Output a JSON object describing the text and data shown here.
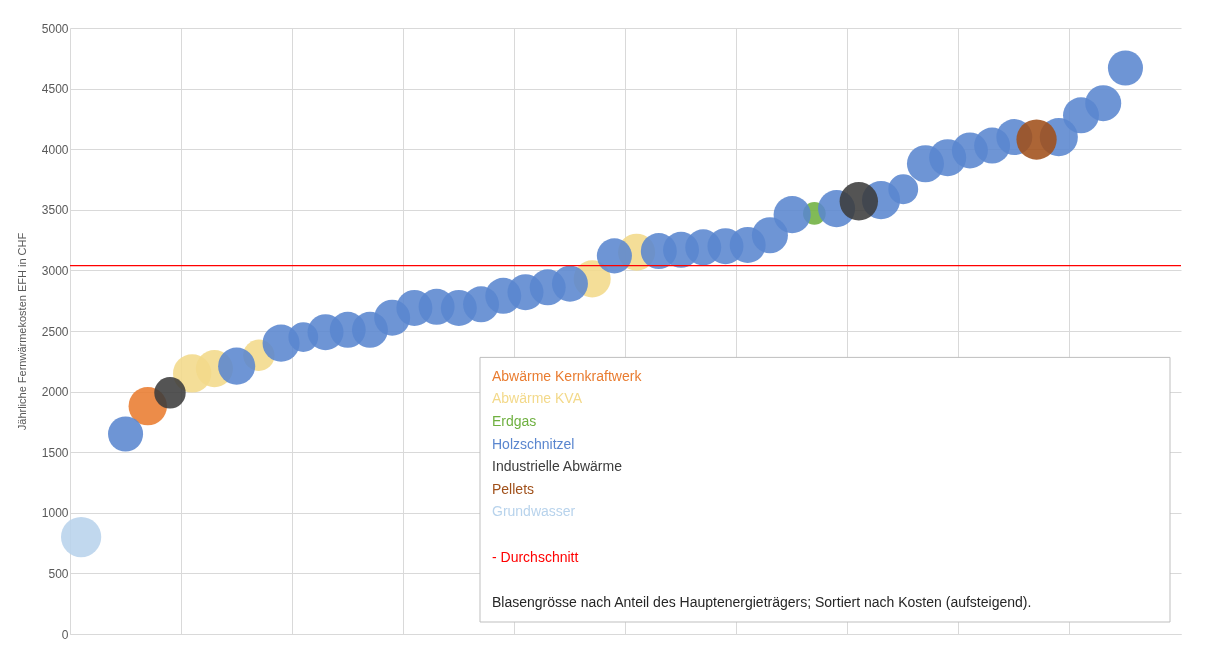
{
  "chart_data": {
    "type": "bubble",
    "ylabel": "Jährliche Fernwärmekosten EFH in CHF",
    "categories": [
      null,
      null,
      null,
      null,
      null,
      null,
      null,
      null,
      null,
      null,
      null,
      null,
      null,
      null,
      null,
      null,
      null,
      null,
      null,
      null,
      null,
      null,
      null,
      null,
      null,
      null,
      null,
      null,
      null,
      null,
      null,
      null,
      null,
      null,
      null,
      null,
      null,
      null,
      null,
      null,
      null,
      null,
      null,
      null,
      null,
      null,
      null,
      null,
      null,
      null
    ],
    "ylim": [
      0,
      5000
    ],
    "yticks": [
      0,
      500,
      1000,
      1500,
      2000,
      2500,
      3000,
      3500,
      4000,
      4500,
      5000
    ],
    "tick_labels": "y",
    "grid": true,
    "series": [
      {
        "name": "Abwärme Kernkraftwerk",
        "color": "#e97c30",
        "values": [
          null,
          null,
          null,
          1880,
          null,
          null,
          null,
          null,
          null,
          null,
          null,
          null,
          null,
          null,
          null,
          null,
          null,
          null,
          null,
          null,
          null,
          null,
          null,
          null,
          null,
          null,
          null,
          null,
          null,
          null,
          null,
          null,
          null,
          null,
          null,
          null,
          null,
          null,
          null,
          null,
          null,
          null,
          null,
          null,
          null,
          null,
          null,
          null,
          null,
          null
        ],
        "sizes": [
          null,
          null,
          null,
          0.91,
          null,
          null,
          null,
          null,
          null,
          null,
          null,
          null,
          null,
          null,
          null,
          null,
          null,
          null,
          null,
          null,
          null,
          null,
          null,
          null,
          null,
          null,
          null,
          null,
          null,
          null,
          null,
          null,
          null,
          null,
          null,
          null,
          null,
          null,
          null,
          null,
          null,
          null,
          null,
          null,
          null,
          null,
          null,
          null,
          null,
          null
        ]
      },
      {
        "name": "Abwärme KVA",
        "color": "#f3d98a",
        "values": [
          null,
          null,
          null,
          null,
          null,
          2150,
          2190,
          null,
          2300,
          null,
          null,
          null,
          null,
          null,
          null,
          null,
          null,
          null,
          null,
          null,
          null,
          null,
          null,
          2930,
          null,
          3150,
          null,
          null,
          null,
          null,
          null,
          null,
          null,
          null,
          null,
          null,
          null,
          null,
          null,
          null,
          null,
          null,
          null,
          null,
          null,
          null,
          null,
          null,
          null,
          null
        ],
        "sizes": [
          null,
          null,
          null,
          null,
          null,
          0.91,
          0.85,
          null,
          0.61,
          null,
          null,
          null,
          null,
          null,
          null,
          null,
          null,
          null,
          null,
          null,
          null,
          null,
          null,
          0.85,
          null,
          0.85,
          null,
          null,
          null,
          null,
          null,
          null,
          null,
          null,
          null,
          null,
          null,
          null,
          null,
          null,
          null,
          null,
          null,
          null,
          null,
          null,
          null,
          null,
          null,
          null
        ]
      },
      {
        "name": "Erdgas",
        "color": "#6fb040",
        "values": [
          null,
          null,
          null,
          null,
          null,
          null,
          null,
          null,
          null,
          null,
          null,
          null,
          null,
          null,
          null,
          null,
          null,
          null,
          null,
          null,
          null,
          null,
          null,
          null,
          null,
          null,
          null,
          null,
          null,
          null,
          null,
          null,
          null,
          3470,
          null,
          null,
          null,
          null,
          null,
          null,
          null,
          null,
          null,
          null,
          null,
          null,
          null,
          null,
          null,
          null
        ],
        "sizes": [
          null,
          null,
          null,
          null,
          null,
          null,
          null,
          null,
          null,
          null,
          null,
          null,
          null,
          null,
          null,
          null,
          null,
          null,
          null,
          null,
          null,
          null,
          null,
          null,
          null,
          null,
          null,
          null,
          null,
          null,
          null,
          null,
          null,
          0.32,
          null,
          null,
          null,
          null,
          null,
          null,
          null,
          null,
          null,
          null,
          null,
          null,
          null,
          null,
          null,
          null
        ]
      },
      {
        "name": "Holzschnitzel",
        "color": "#5a86cf",
        "values": [
          null,
          null,
          1650,
          null,
          null,
          null,
          null,
          2210,
          null,
          2400,
          2450,
          2490,
          2510,
          2510,
          2610,
          2690,
          2700,
          2690,
          2720,
          2790,
          2820,
          2860,
          2890,
          null,
          3120,
          null,
          3160,
          3170,
          3190,
          3200,
          3210,
          3290,
          3460,
          null,
          3510,
          null,
          3580,
          3670,
          3880,
          3930,
          3990,
          4030,
          4100,
          null,
          4100,
          4280,
          4380,
          4670,
          null,
          null
        ],
        "sizes": [
          null,
          null,
          0.76,
          null,
          null,
          null,
          null,
          0.85,
          null,
          0.85,
          0.55,
          0.8,
          0.8,
          0.8,
          0.8,
          0.8,
          0.8,
          0.8,
          0.8,
          0.8,
          0.8,
          0.8,
          0.8,
          null,
          0.76,
          null,
          0.8,
          0.8,
          0.8,
          0.8,
          0.8,
          0.8,
          0.85,
          null,
          0.85,
          null,
          0.9,
          0.55,
          0.85,
          0.85,
          0.8,
          0.8,
          0.8,
          null,
          0.9,
          0.8,
          0.8,
          0.76,
          null,
          null
        ]
      },
      {
        "name": "Industrielle Abwärme",
        "color": "#3c3c3c",
        "values": [
          null,
          null,
          null,
          null,
          1990,
          null,
          null,
          null,
          null,
          null,
          null,
          null,
          null,
          null,
          null,
          null,
          null,
          null,
          null,
          null,
          null,
          null,
          null,
          null,
          null,
          null,
          null,
          null,
          null,
          null,
          null,
          null,
          null,
          null,
          null,
          3570,
          null,
          null,
          null,
          null,
          null,
          null,
          null,
          null,
          null,
          null,
          null,
          null,
          null,
          null
        ],
        "sizes": [
          null,
          null,
          null,
          null,
          0.61,
          null,
          null,
          null,
          null,
          null,
          null,
          null,
          null,
          null,
          null,
          null,
          null,
          null,
          null,
          null,
          null,
          null,
          null,
          null,
          null,
          null,
          null,
          null,
          null,
          null,
          null,
          null,
          null,
          null,
          null,
          0.91,
          null,
          null,
          null,
          null,
          null,
          null,
          null,
          null,
          null,
          null,
          null,
          null,
          null,
          null
        ]
      },
      {
        "name": "Pellets",
        "color": "#a0501a",
        "values": [
          null,
          null,
          null,
          null,
          null,
          null,
          null,
          null,
          null,
          null,
          null,
          null,
          null,
          null,
          null,
          null,
          null,
          null,
          null,
          null,
          null,
          null,
          null,
          null,
          null,
          null,
          null,
          null,
          null,
          null,
          null,
          null,
          null,
          null,
          null,
          null,
          null,
          null,
          null,
          null,
          null,
          null,
          null,
          4080,
          null,
          null,
          null,
          null,
          null,
          null
        ],
        "sizes": [
          null,
          null,
          null,
          null,
          null,
          null,
          null,
          null,
          null,
          null,
          null,
          null,
          null,
          null,
          null,
          null,
          null,
          null,
          null,
          null,
          null,
          null,
          null,
          null,
          null,
          null,
          null,
          null,
          null,
          null,
          null,
          null,
          null,
          null,
          null,
          null,
          null,
          null,
          null,
          null,
          null,
          null,
          null,
          1,
          null,
          null,
          null,
          null,
          null,
          null
        ]
      },
      {
        "name": "Grundwasser",
        "color": "#b8d3ec",
        "values": [
          800,
          null,
          null,
          null,
          null,
          null,
          null,
          null,
          null,
          null,
          null,
          null,
          null,
          null,
          null,
          null,
          null,
          null,
          null,
          null,
          null,
          null,
          null,
          null,
          null,
          null,
          null,
          null,
          null,
          null,
          null,
          null,
          null,
          null,
          null,
          null,
          null,
          null,
          null,
          null,
          null,
          null,
          null,
          null,
          null,
          null,
          null,
          null,
          null,
          null
        ],
        "sizes": [
          1,
          null,
          null,
          null,
          null,
          null,
          null,
          null,
          null,
          null,
          null,
          null,
          null,
          null,
          null,
          null,
          null,
          null,
          null,
          null,
          null,
          null,
          null,
          null,
          null,
          null,
          null,
          null,
          null,
          null,
          null,
          null,
          null,
          null,
          null,
          null,
          null,
          null,
          null,
          null,
          null,
          null,
          null,
          null,
          null,
          null,
          null,
          null,
          null,
          null
        ]
      }
    ],
    "ref_lines": [
      {
        "axis": "y",
        "value": 3040,
        "label": "- Durchschnitt",
        "color": "#ff0000"
      }
    ],
    "annotations": [
      "Blasengrösse nach Anteil des Hauptenergieträgers; Sortiert nach Kosten (aufsteigend)."
    ]
  }
}
